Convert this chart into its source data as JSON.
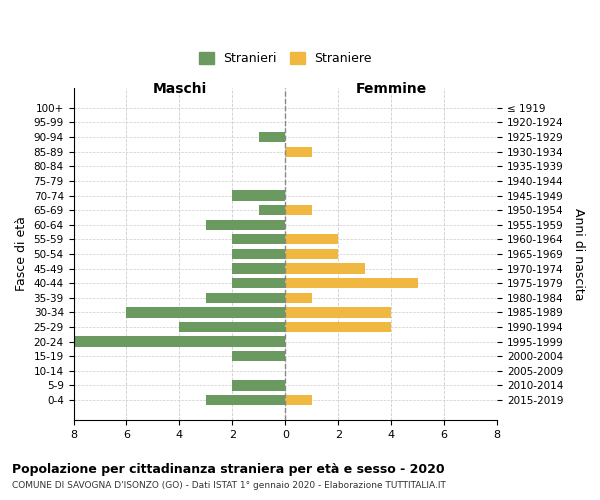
{
  "age_groups": [
    "100+",
    "95-99",
    "90-94",
    "85-89",
    "80-84",
    "75-79",
    "70-74",
    "65-69",
    "60-64",
    "55-59",
    "50-54",
    "45-49",
    "40-44",
    "35-39",
    "30-34",
    "25-29",
    "20-24",
    "15-19",
    "10-14",
    "5-9",
    "0-4"
  ],
  "birth_years": [
    "≤ 1919",
    "1920-1924",
    "1925-1929",
    "1930-1934",
    "1935-1939",
    "1940-1944",
    "1945-1949",
    "1950-1954",
    "1955-1959",
    "1960-1964",
    "1965-1969",
    "1970-1974",
    "1975-1979",
    "1980-1984",
    "1985-1989",
    "1990-1994",
    "1995-1999",
    "2000-2004",
    "2005-2009",
    "2010-2014",
    "2015-2019"
  ],
  "maschi": [
    0,
    0,
    1,
    0,
    0,
    0,
    2,
    1,
    3,
    2,
    2,
    2,
    2,
    3,
    6,
    4,
    8,
    2,
    0,
    2,
    3
  ],
  "femmine": [
    0,
    0,
    0,
    1,
    0,
    0,
    0,
    1,
    0,
    2,
    2,
    3,
    5,
    1,
    4,
    4,
    0,
    0,
    0,
    0,
    1
  ],
  "color_maschi": "#6a9a5f",
  "color_femmine": "#f0b840",
  "background_color": "#ffffff",
  "grid_color": "#cccccc",
  "title": "Popolazione per cittadinanza straniera per età e sesso - 2020",
  "subtitle": "COMUNE DI SAVOGNA D'ISONZO (GO) - Dati ISTAT 1° gennaio 2020 - Elaborazione TUTTITALIA.IT",
  "ylabel_left": "Fasce di età",
  "ylabel_right": "Anni di nascita",
  "xlabel_maschi": "Maschi",
  "xlabel_femmine": "Femmine",
  "legend_maschi": "Stranieri",
  "legend_femmine": "Straniere",
  "xlim": 8,
  "figsize": [
    6.0,
    5.0
  ],
  "dpi": 100
}
